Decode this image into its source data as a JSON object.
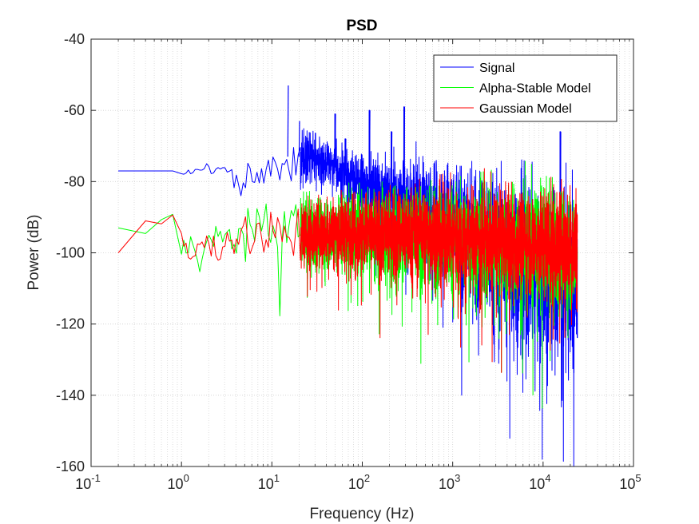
{
  "chart_data": {
    "type": "line",
    "title": "PSD",
    "xlabel": "Frequency (Hz)",
    "ylabel": "Power (dB)",
    "x_scale": "log",
    "xlim": [
      0.1,
      100000
    ],
    "ylim": [
      -160,
      -40
    ],
    "grid": true,
    "minor_grid": true,
    "x_tick_labels": [
      {
        "base": "10",
        "exp": "-1",
        "value": 0.1
      },
      {
        "base": "10",
        "exp": "0",
        "value": 1
      },
      {
        "base": "10",
        "exp": "1",
        "value": 10
      },
      {
        "base": "10",
        "exp": "2",
        "value": 100
      },
      {
        "base": "10",
        "exp": "3",
        "value": 1000
      },
      {
        "base": "10",
        "exp": "4",
        "value": 10000
      },
      {
        "base": "10",
        "exp": "5",
        "value": 100000
      }
    ],
    "y_ticks": [
      -160,
      -140,
      -120,
      -100,
      -80,
      -60,
      -40
    ],
    "legend_position": "top-right",
    "series": [
      {
        "name": "Signal",
        "color": "#0000ff",
        "trend": {
          "x": [
            0.2,
            0.5,
            0.8,
            1.0,
            1.5,
            2.0,
            2.5,
            3.0,
            3.5,
            4.0,
            5,
            7,
            10,
            15,
            20,
            30,
            50,
            70,
            100,
            150,
            200,
            300,
            500,
            700,
            1000,
            2000,
            3000,
            5000,
            7000,
            10000,
            15000,
            20000,
            24000
          ],
          "center": [
            -77,
            -77,
            -77,
            -78,
            -77,
            -76,
            -76,
            -77,
            -76,
            -81,
            -79,
            -78,
            -76,
            -73,
            -73,
            -73,
            -76,
            -79,
            -81,
            -83,
            -84,
            -86,
            -88,
            -90,
            -92,
            -96,
            -99,
            -102,
            -104,
            -105,
            -107,
            -108,
            -109
          ],
          "spread": [
            0,
            0,
            0,
            0.5,
            1,
            1.5,
            1.5,
            2,
            2,
            3,
            4,
            5,
            5,
            6,
            6,
            6,
            6,
            7,
            8,
            9,
            10,
            11,
            12,
            14,
            16,
            18,
            20,
            22,
            22,
            22,
            22,
            22,
            22
          ]
        },
        "peaks": [
          {
            "x": 15,
            "y": -53
          },
          {
            "x": 20,
            "y": -63
          },
          {
            "x": 50,
            "y": -61
          },
          {
            "x": 65,
            "y": -68
          },
          {
            "x": 120,
            "y": -60
          },
          {
            "x": 210,
            "y": -66
          },
          {
            "x": 290,
            "y": -59
          },
          {
            "x": 15500,
            "y": -66
          }
        ]
      },
      {
        "name": "Alpha-Stable Model",
        "color": "#00ff00",
        "trend": {
          "x": [
            0.2,
            0.4,
            0.6,
            0.8,
            1.0,
            1.3,
            1.6,
            2.0,
            3.0,
            5,
            10,
            20,
            50,
            100,
            200,
            500,
            1000,
            3000,
            10000,
            24000
          ],
          "center": [
            -93,
            -95,
            -90,
            -89,
            -97,
            -98,
            -103,
            -96,
            -96,
            -95,
            -94,
            -94,
            -94,
            -94,
            -95,
            -95,
            -96,
            -97,
            -98,
            -99
          ],
          "spread": [
            0,
            0.5,
            1,
            1,
            2,
            3,
            3,
            4,
            5,
            6,
            8,
            9,
            10,
            11,
            12,
            13,
            14,
            15,
            16,
            16
          ]
        }
      },
      {
        "name": "Gaussian Model",
        "color": "#ff0000",
        "trend": {
          "x": [
            0.2,
            0.4,
            0.6,
            0.8,
            1.0,
            1.3,
            1.6,
            2.0,
            3.0,
            5,
            10,
            20,
            50,
            100,
            200,
            500,
            1000,
            3000,
            10000,
            24000
          ],
          "center": [
            -100,
            -91,
            -91,
            -89,
            -95,
            -103,
            -97,
            -98,
            -96,
            -96,
            -95,
            -95,
            -94,
            -94,
            -94,
            -94,
            -95,
            -96,
            -97,
            -98
          ],
          "spread": [
            0,
            0.5,
            1,
            1,
            2,
            3,
            3,
            4,
            5,
            6,
            7,
            8,
            9,
            10,
            11,
            12,
            13,
            13,
            14,
            15
          ]
        }
      }
    ]
  }
}
